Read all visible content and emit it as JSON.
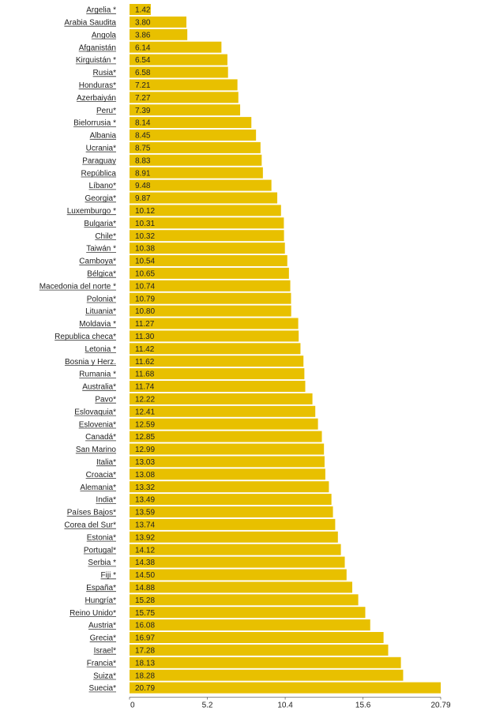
{
  "chart_data": {
    "type": "bar",
    "orientation": "horizontal",
    "title": "",
    "xlabel": "",
    "ylabel": "",
    "xlim": [
      0,
      20.79
    ],
    "x_ticks": [
      "0",
      "5.2",
      "10.4",
      "15.6",
      "20.79"
    ],
    "grid": false,
    "legend": "none",
    "bar_color": "#E8C000",
    "categories": [
      "Argelia *",
      "Arabia Saudita",
      "Angola",
      "Afganistán",
      "Kirguistán *",
      "Rusia*",
      "Honduras*",
      "Azerbaiyán",
      "Peru*",
      "Bielorrusia *",
      "Albania",
      "Ucrania*",
      "Paraguay",
      "República",
      "Líbano*",
      "Georgia*",
      "Luxemburgo *",
      "Bulgaria*",
      "Chile*",
      "Taiwán *",
      "Camboya*",
      "Bélgica*",
      "Macedonia del norte *",
      "Polonia*",
      "Lituania*",
      "Moldavia *",
      "Republica checa*",
      "Letonia *",
      "Bosnia y Herz.",
      "Rumania *",
      "Australia*",
      "Pavo*",
      "Eslovaquia*",
      "Eslovenia*",
      "Canadá*",
      "San Marino",
      "Italia*",
      "Croacia*",
      "Alemania*",
      "India*",
      "Países Bajos*",
      "Corea del Sur*",
      "Estonia*",
      "Portugal*",
      "Serbia *",
      "Fiji *",
      "España*",
      "Hungría*",
      "Reino Unido*",
      "Austria*",
      "Grecia*",
      "Israel*",
      "Francia*",
      "Suiza*",
      "Suecia*"
    ],
    "values": [
      1.42,
      3.8,
      3.86,
      6.14,
      6.54,
      6.58,
      7.21,
      7.27,
      7.39,
      8.14,
      8.45,
      8.75,
      8.83,
      8.91,
      9.48,
      9.87,
      10.12,
      10.31,
      10.32,
      10.38,
      10.54,
      10.65,
      10.74,
      10.79,
      10.8,
      11.27,
      11.3,
      11.42,
      11.62,
      11.68,
      11.74,
      12.22,
      12.41,
      12.59,
      12.85,
      12.99,
      13.03,
      13.08,
      13.32,
      13.49,
      13.59,
      13.74,
      13.92,
      14.12,
      14.38,
      14.5,
      14.88,
      15.28,
      15.75,
      16.08,
      16.97,
      17.28,
      18.13,
      18.28,
      20.79
    ],
    "value_labels": [
      "1.42",
      "3.80",
      "3.86",
      "6.14",
      "6.54",
      "6.58",
      "7.21",
      "7.27",
      "7.39",
      "8.14",
      "8.45",
      "8.75",
      "8.83",
      "8.91",
      "9.48",
      "9.87",
      "10.12",
      "10.31",
      "10.32",
      "10.38",
      "10.54",
      "10.65",
      "10.74",
      "10.79",
      "10.80",
      "11.27",
      "11.30",
      "11.42",
      "11.62",
      "11.68",
      "11.74",
      "12.22",
      "12.41",
      "12.59",
      "12.85",
      "12.99",
      "13.03",
      "13.08",
      "13.32",
      "13.49",
      "13.59",
      "13.74",
      "13.92",
      "14.12",
      "14.38",
      "14.50",
      "14.88",
      "15.28",
      "15.75",
      "16.08",
      "16.97",
      "17.28",
      "18.13",
      "18.28",
      "20.79"
    ]
  }
}
